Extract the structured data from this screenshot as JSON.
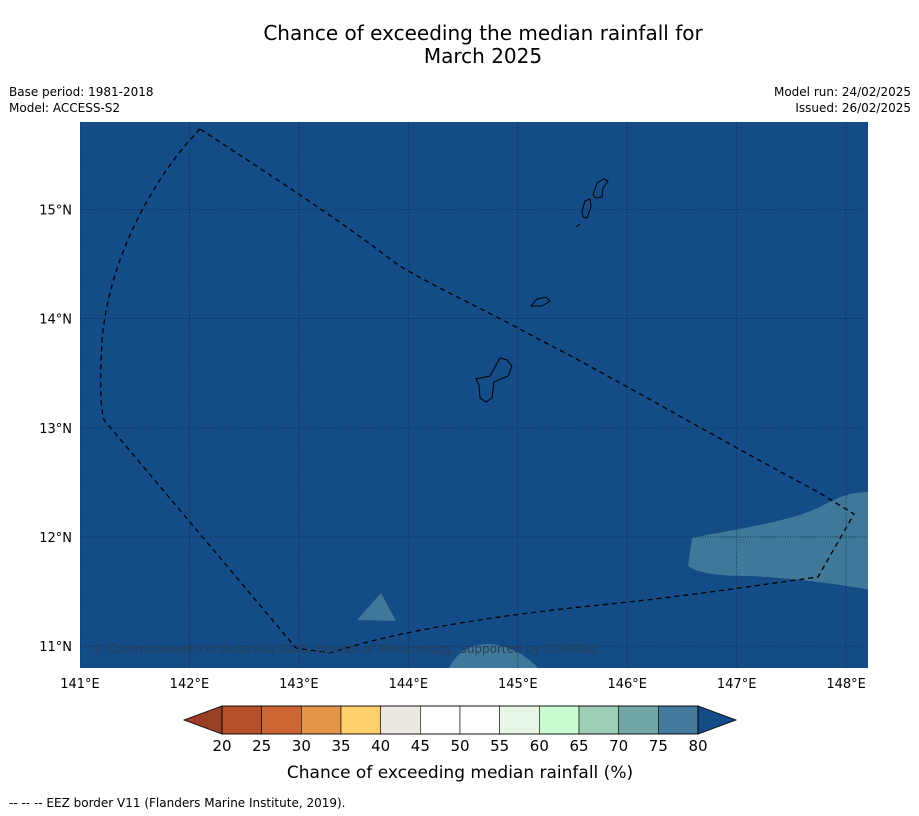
{
  "header": {
    "title_line1": "Chance of exceeding the median rainfall for",
    "title_line2": "March 2025",
    "base_period": "Base period: 1981-2018",
    "model": "Model: ACCESS-S2",
    "model_run": "Model run: 24/02/2025",
    "issued": "Issued: 26/02/2025"
  },
  "map": {
    "lon_range": [
      141.0,
      148.2
    ],
    "lat_range": [
      10.8,
      15.8
    ],
    "lon_ticks": [
      {
        "value": 141,
        "label": "141°E"
      },
      {
        "value": 142,
        "label": "142°E"
      },
      {
        "value": 143,
        "label": "143°E"
      },
      {
        "value": 144,
        "label": "144°E"
      },
      {
        "value": 145,
        "label": "145°E"
      },
      {
        "value": 146,
        "label": "146°E"
      },
      {
        "value": 147,
        "label": "147°E"
      },
      {
        "value": 148,
        "label": "148°E"
      }
    ],
    "lat_ticks": [
      {
        "value": 11,
        "label": "11°N"
      },
      {
        "value": 12,
        "label": "12°N"
      },
      {
        "value": 13,
        "label": "13°N"
      },
      {
        "value": 14,
        "label": "14°N"
      },
      {
        "value": 15,
        "label": "15°N"
      }
    ],
    "background_color": "#134c87",
    "patch_color": "#3f7898",
    "copyright": "© Commonwealth of Australia 2025, Bureau of Meteorology, supported by COSPPac"
  },
  "colorbar": {
    "ticks": [
      "20",
      "25",
      "30",
      "35",
      "40",
      "45",
      "50",
      "55",
      "60",
      "65",
      "70",
      "75",
      "80"
    ],
    "colors": [
      "#b5502a",
      "#ce6534",
      "#e3964a",
      "#ffd06b",
      "#ece8e2",
      "#ffffff",
      "#ffffff",
      "#e9f7e8",
      "#c9fcce",
      "#9dcfb7",
      "#70a6a6",
      "#43799a"
    ],
    "under_color": "#9b3f25",
    "over_color": "#134c87",
    "title": "Chance of exceeding median rainfall (%)"
  },
  "footnote": "--  --  -- EEZ border V11 (Flanders Marine Institute, 2019)."
}
